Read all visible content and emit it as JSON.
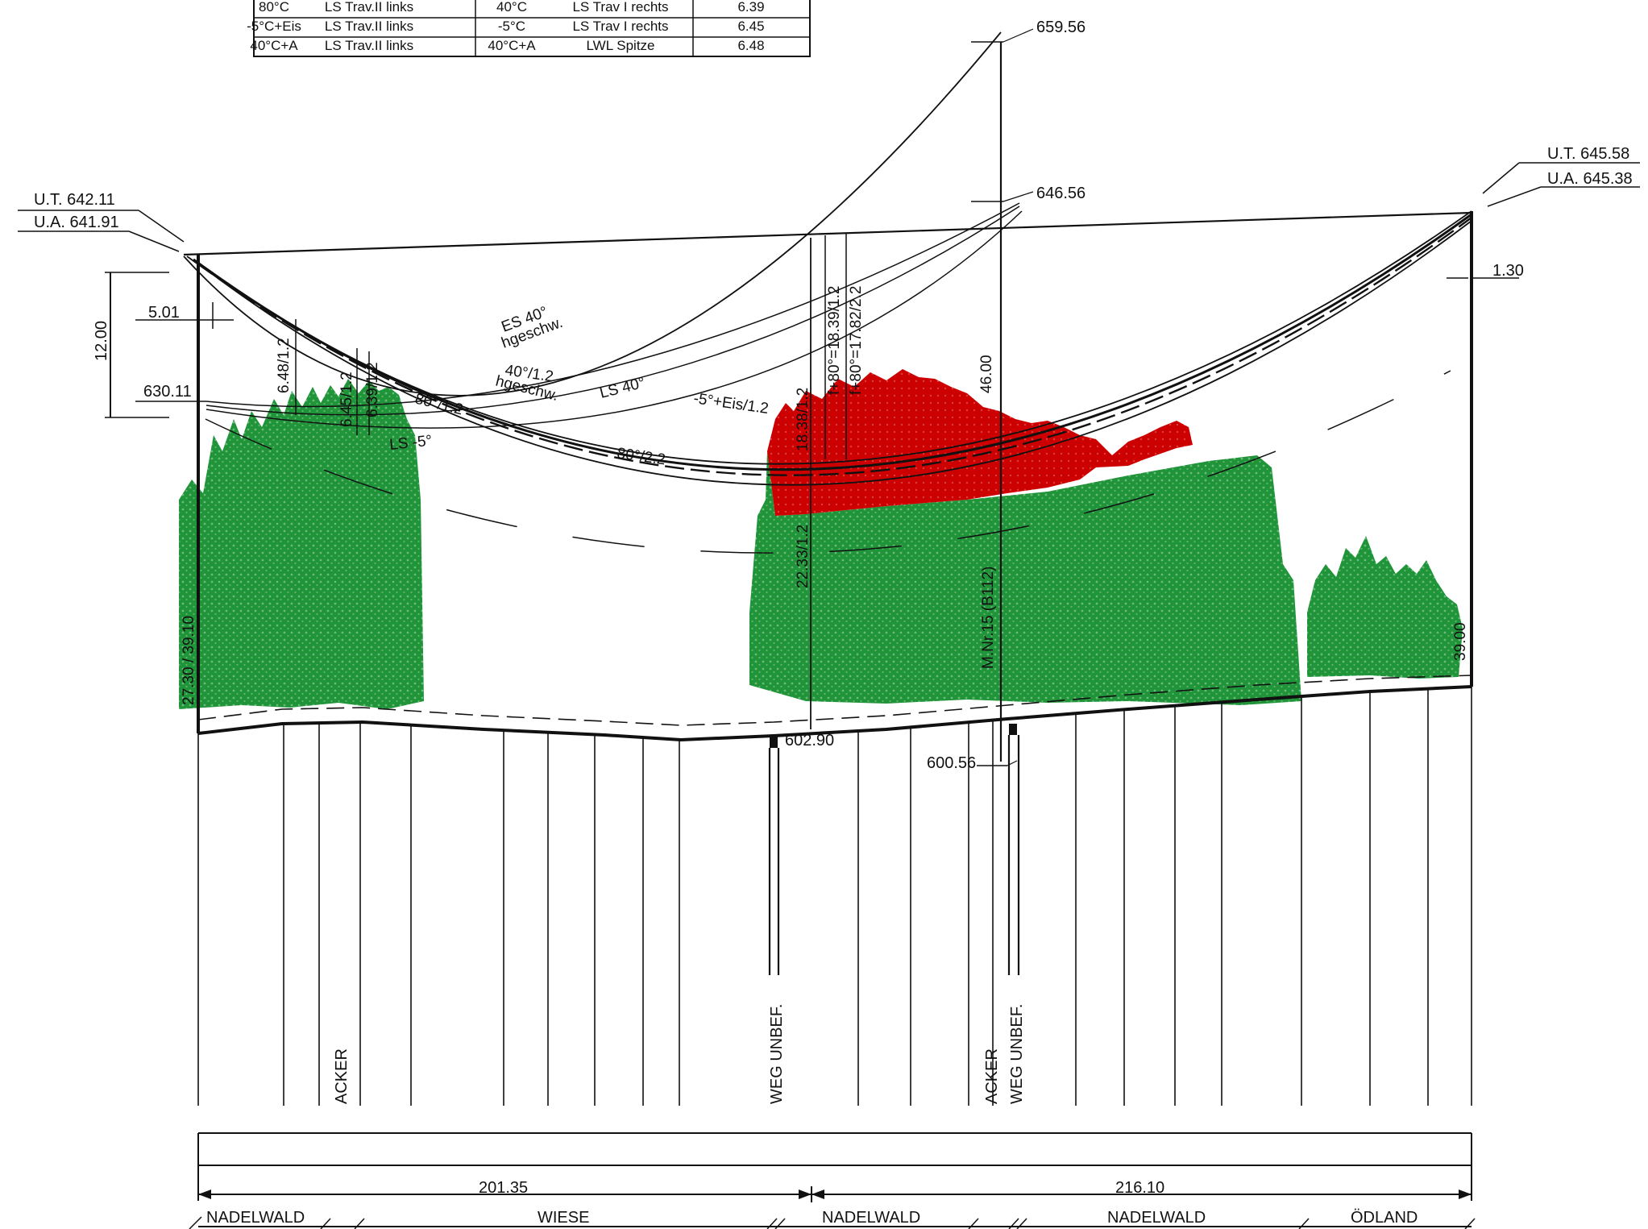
{
  "table": {
    "rows": [
      [
        "80°C",
        "LS Trav.II links",
        "40°C",
        "LS Trav I rechts",
        "6.39"
      ],
      [
        "-5°C+Eis",
        "LS Trav.II links",
        "-5°C",
        "LS Trav I rechts",
        "6.45"
      ],
      [
        "40°C+A",
        "LS Trav.II links",
        "40°C+A",
        "LWL Spitze",
        "6.48"
      ]
    ]
  },
  "elevations": {
    "top_mast": "659.56",
    "mid_mast": "646.56",
    "left_ut": "U.T. 642.11",
    "left_ua": "U.A. 641.91",
    "right_ut": "U.T. 645.58",
    "right_ua": "U.A. 645.38",
    "left_630": "630.11",
    "ground_low": "602.90",
    "ground_mast": "600.56"
  },
  "dimensions": {
    "d1200": "12.00",
    "d501": "5.01",
    "d130": "1.30",
    "d648": "6.48/1.2",
    "d645": "6.45/1.2",
    "d639": "6.39/1.2",
    "d1838": "18.38/1.2",
    "d1839": "f+80°=18.39/1.2",
    "d1782": "f+80°=17.82/2.2",
    "d4600": "46.00",
    "d2233": "22.33/1.2",
    "d_left_h": "27.30 / 39.10",
    "d_right_h": "39.00",
    "span1": "201.35",
    "span2": "216.10"
  },
  "curve_labels": {
    "es40": "ES 40°",
    "hgeschw1": "hgeschw.",
    "c40": "40°/1.2",
    "hgeschw2": "hgeschw.",
    "ls40": "LS 40°",
    "eis": "-5°+Eis/1.2",
    "c80": "80°/1.2",
    "ls5": "LS -5°",
    "c80b": "80°/2.2"
  },
  "mast_label": "M.Nr.15 (B112)",
  "crossings": {
    "acker1": "ACKER",
    "weg1": "WEG UNBEF.",
    "acker2": "ACKER",
    "weg2": "WEG UNBEF."
  },
  "land_use": [
    "NADELWALD",
    "WIESE",
    "NADELWALD",
    "NADELWALD",
    "ÖDLAND"
  ],
  "colors": {
    "vegetation": "#1f9438",
    "vegetation_danger": "#cc0000",
    "lines": "#111111"
  }
}
